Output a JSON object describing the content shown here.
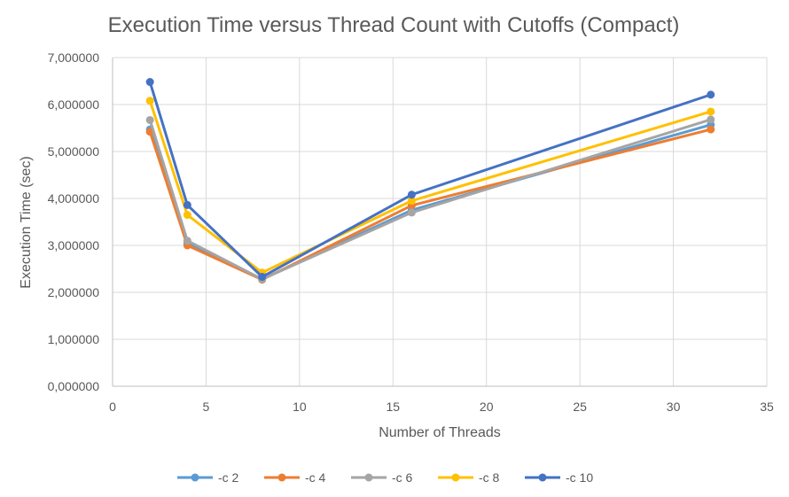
{
  "chart_data": {
    "type": "line",
    "title": "Execution Time versus Thread Count with Cutoffs (Compact)",
    "xlabel": "Number of Threads",
    "ylabel": "Execution Time (sec)",
    "xlim": [
      0,
      35
    ],
    "ylim": [
      0,
      7
    ],
    "x_ticks": [
      0,
      5,
      10,
      15,
      20,
      25,
      30,
      35
    ],
    "x_tick_labels": [
      "0",
      "5",
      "10",
      "15",
      "20",
      "25",
      "30",
      "35"
    ],
    "y_ticks": [
      0,
      1,
      2,
      3,
      4,
      5,
      6,
      7
    ],
    "y_tick_labels": [
      "0,000000",
      "1,000000",
      "2,000000",
      "3,000000",
      "4,000000",
      "5,000000",
      "6,000000",
      "7,000000"
    ],
    "grid": true,
    "legend_position": "bottom",
    "x": [
      2,
      4,
      8,
      16,
      32
    ],
    "series": [
      {
        "name": "-c 2",
        "color": "#5B9BD5",
        "values": [
          5.47,
          3.05,
          2.28,
          3.75,
          5.57
        ]
      },
      {
        "name": "-c 4",
        "color": "#ED7D31",
        "values": [
          5.42,
          3.0,
          2.27,
          3.85,
          5.47
        ]
      },
      {
        "name": "-c 6",
        "color": "#A5A5A5",
        "values": [
          5.67,
          3.1,
          2.28,
          3.7,
          5.68
        ]
      },
      {
        "name": "-c 8",
        "color": "#FFC000",
        "values": [
          6.08,
          3.65,
          2.42,
          3.95,
          5.85
        ]
      },
      {
        "name": "-c 10",
        "color": "#4472C4",
        "values": [
          6.48,
          3.86,
          2.33,
          4.08,
          6.21
        ]
      }
    ]
  }
}
